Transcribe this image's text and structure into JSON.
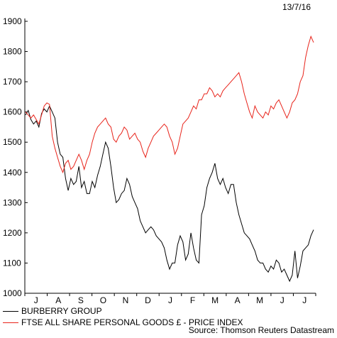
{
  "date_label": "13/7/16",
  "source": "Source: Thomson Reuters Datastream",
  "chart_data": {
    "type": "line",
    "title": "",
    "xlabel": "",
    "ylabel": "",
    "ylim": [
      1000,
      1900
    ],
    "yticks": [
      1000,
      1100,
      1200,
      1300,
      1400,
      1500,
      1600,
      1700,
      1800,
      1900
    ],
    "x_tick_labels": [
      "J",
      "A",
      "S",
      "O",
      "N",
      "D",
      "J",
      "F",
      "M",
      "A",
      "M",
      "J",
      "J"
    ],
    "grid": false,
    "legend_position": "bottom-left",
    "series": [
      {
        "name": "BURBERRY GROUP",
        "color": "#000000",
        "values": [
          1590,
          1605,
          1575,
          1560,
          1570,
          1550,
          1595,
          1610,
          1600,
          1620,
          1600,
          1580,
          1500,
          1460,
          1450,
          1380,
          1340,
          1380,
          1360,
          1370,
          1420,
          1350,
          1370,
          1330,
          1330,
          1370,
          1350,
          1390,
          1420,
          1460,
          1500,
          1480,
          1420,
          1350,
          1300,
          1310,
          1330,
          1340,
          1380,
          1360,
          1320,
          1300,
          1280,
          1240,
          1220,
          1200,
          1210,
          1220,
          1210,
          1190,
          1180,
          1170,
          1150,
          1110,
          1080,
          1100,
          1100,
          1160,
          1190,
          1170,
          1110,
          1130,
          1200,
          1150,
          1110,
          1100,
          1260,
          1290,
          1350,
          1380,
          1400,
          1430,
          1380,
          1360,
          1380,
          1350,
          1330,
          1360,
          1360,
          1300,
          1260,
          1230,
          1200,
          1190,
          1180,
          1160,
          1140,
          1110,
          1100,
          1100,
          1080,
          1070,
          1090,
          1080,
          1110,
          1100,
          1070,
          1080,
          1060,
          1040,
          1060,
          1140,
          1050,
          1090,
          1140,
          1150,
          1160,
          1190,
          1210
        ]
      },
      {
        "name": "FTSE ALL SHARE PERSONAL GOODS £ - PRICE INDEX",
        "color": "#e8231a",
        "values": [
          1600,
          1590,
          1580,
          1590,
          1575,
          1560,
          1590,
          1620,
          1630,
          1625,
          1520,
          1480,
          1450,
          1420,
          1400,
          1430,
          1440,
          1410,
          1420,
          1440,
          1460,
          1440,
          1410,
          1440,
          1460,
          1500,
          1530,
          1550,
          1560,
          1570,
          1580,
          1560,
          1550,
          1510,
          1500,
          1520,
          1530,
          1550,
          1540,
          1510,
          1520,
          1530,
          1510,
          1500,
          1470,
          1450,
          1480,
          1500,
          1520,
          1530,
          1540,
          1550,
          1560,
          1550,
          1520,
          1500,
          1460,
          1480,
          1520,
          1560,
          1570,
          1580,
          1600,
          1620,
          1610,
          1640,
          1640,
          1660,
          1660,
          1680,
          1670,
          1650,
          1660,
          1650,
          1670,
          1680,
          1690,
          1700,
          1710,
          1720,
          1730,
          1700,
          1660,
          1630,
          1600,
          1580,
          1620,
          1600,
          1590,
          1580,
          1600,
          1590,
          1620,
          1610,
          1630,
          1640,
          1620,
          1600,
          1580,
          1600,
          1630,
          1640,
          1660,
          1700,
          1720,
          1780,
          1820,
          1850,
          1830
        ]
      }
    ]
  }
}
